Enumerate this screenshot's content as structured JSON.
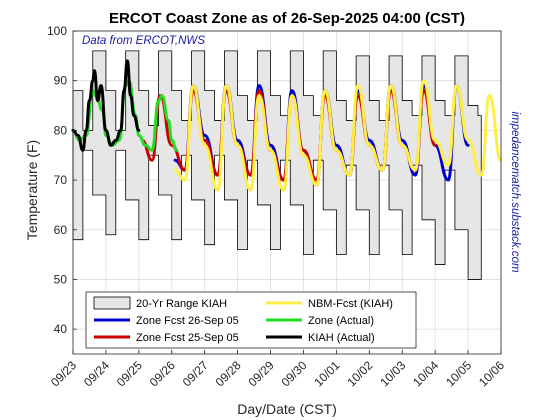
{
  "chart_data": {
    "type": "line",
    "title": "ERCOT Coast Zone as of 26-Sep-2025 04:00 (CST)",
    "xlabel": "Day/Date (CST)",
    "ylabel": "Temperature (F)",
    "x_unit": "day of September 2025 (fractional, CST)",
    "xlim": [
      23,
      36
    ],
    "ylim": [
      35,
      100
    ],
    "x_ticks": [
      {
        "x": 23,
        "label": "09/23"
      },
      {
        "x": 24,
        "label": "09/24"
      },
      {
        "x": 25,
        "label": "09/25"
      },
      {
        "x": 26,
        "label": "09/26"
      },
      {
        "x": 27,
        "label": "09/27"
      },
      {
        "x": 28,
        "label": "09/28"
      },
      {
        "x": 29,
        "label": "09/29"
      },
      {
        "x": 30,
        "label": "09/30"
      },
      {
        "x": 31,
        "label": "10/01"
      },
      {
        "x": 32,
        "label": "10/02"
      },
      {
        "x": 33,
        "label": "10/03"
      },
      {
        "x": 34,
        "label": "10/04"
      },
      {
        "x": 35,
        "label": "10/05"
      },
      {
        "x": 36,
        "label": "10/06"
      }
    ],
    "y_ticks": [
      {
        "y": 40,
        "label": "40"
      },
      {
        "y": 50,
        "label": "50"
      },
      {
        "y": 60,
        "label": "60"
      },
      {
        "y": 70,
        "label": "70"
      },
      {
        "y": 80,
        "label": "80"
      },
      {
        "y": 90,
        "label": "90"
      },
      {
        "y": 100,
        "label": "100"
      }
    ],
    "grid": true,
    "legend_position": "bottom-center",
    "annotations": [
      {
        "text": "Data from ERCOT,NWS",
        "position": "top-left"
      },
      {
        "text": "impedancematch.substack.com",
        "position": "right-side-vertical"
      }
    ],
    "series": [
      {
        "name": "20-Yr Range KIAH",
        "kind": "band",
        "color": "#e6e6e6",
        "x": [
          23.0,
          23.3,
          23.6,
          24.0,
          24.3,
          24.6,
          25.0,
          25.3,
          25.6,
          26.0,
          26.3,
          26.6,
          27.0,
          27.3,
          27.6,
          28.0,
          28.3,
          28.6,
          29.0,
          29.3,
          29.6,
          30.0,
          30.3,
          30.6,
          31.0,
          31.3,
          31.6,
          32.0,
          32.3,
          32.6,
          33.0,
          33.3,
          33.6,
          34.0,
          34.3,
          34.6,
          35.0,
          35.3
        ],
        "lo": [
          66,
          58,
          76,
          67,
          59,
          76,
          66,
          58,
          75,
          67,
          58,
          75,
          66,
          57,
          75,
          66,
          56,
          74,
          65,
          56,
          74,
          65,
          55,
          74,
          64,
          55,
          73,
          64,
          55,
          73,
          64,
          55,
          73,
          62,
          53,
          72,
          60,
          50
        ],
        "hi": [
          88,
          80,
          96,
          88,
          80,
          96,
          88,
          81,
          96,
          88,
          82,
          96,
          88,
          82,
          96,
          87,
          82,
          96,
          87,
          83,
          96,
          87,
          83,
          96,
          86,
          82,
          95,
          86,
          82,
          95,
          86,
          83,
          95,
          86,
          83,
          95,
          85,
          83
        ]
      },
      {
        "name": "Zone Fcst 26-Sep 05",
        "color": "#0000cc",
        "x": [
          26.1,
          26.4,
          26.65,
          27.0,
          27.4,
          27.65,
          28.0,
          28.4,
          28.65,
          29.0,
          29.4,
          29.65,
          30.0,
          30.4,
          30.65,
          31.0,
          31.4,
          31.65,
          32.0,
          32.4,
          32.65,
          33.0,
          33.4,
          33.65,
          34.0,
          34.4,
          34.65,
          35.0
        ],
        "y": [
          74,
          72,
          89,
          79,
          71,
          89,
          78,
          71,
          89,
          77,
          70,
          88,
          76,
          69,
          88,
          77,
          71,
          88,
          78,
          72,
          89,
          78,
          71,
          89,
          77,
          70,
          89,
          77
        ]
      },
      {
        "name": "Zone Fcst 25-Sep 05",
        "color": "#cc0000",
        "x": [
          25.1,
          25.4,
          25.65,
          26.0,
          26.4,
          26.65,
          27.0,
          27.4,
          27.65,
          28.0,
          28.4,
          28.65,
          29.0,
          29.4,
          29.65,
          30.0,
          30.4,
          30.65,
          31.0,
          31.4,
          31.65,
          32.0,
          32.4,
          32.65,
          33.0,
          33.4,
          33.65,
          34.0
        ],
        "y": [
          78,
          74,
          87,
          77,
          72,
          88,
          78,
          71,
          88,
          77,
          71,
          88,
          76,
          70,
          87,
          76,
          70,
          87,
          76,
          71,
          87,
          77,
          72,
          88,
          77,
          72,
          88,
          77
        ]
      },
      {
        "name": "NBM-Fcst (KIAH)",
        "color": "#ffee44",
        "x": [
          26.1,
          26.4,
          26.65,
          27.0,
          27.4,
          27.65,
          28.0,
          28.4,
          28.65,
          29.0,
          29.4,
          29.65,
          30.0,
          30.4,
          30.65,
          31.0,
          31.4,
          31.65,
          32.0,
          32.4,
          32.65,
          33.0,
          33.4,
          33.65,
          34.0,
          34.4,
          34.65,
          35.0,
          35.4,
          35.65,
          36.0
        ],
        "y": [
          72,
          70,
          89,
          77,
          68,
          89,
          77,
          68,
          87,
          76,
          68,
          87,
          75,
          69,
          88,
          76,
          71,
          89,
          77,
          72,
          89,
          77,
          72,
          90,
          78,
          73,
          89,
          78,
          71,
          87,
          74
        ]
      },
      {
        "name": "Zone (Actual)",
        "color": "#22dd22",
        "x": [
          23.0,
          23.2,
          23.4,
          23.6,
          23.7,
          23.9,
          24.0,
          24.2,
          24.4,
          24.6,
          24.7,
          24.9,
          25.0,
          25.2,
          25.4,
          25.6,
          25.7,
          25.9,
          26.0,
          26.15
        ],
        "y": [
          80,
          78,
          79,
          88,
          87,
          84,
          79,
          77,
          78,
          89,
          90,
          83,
          79,
          77,
          76,
          86,
          87,
          82,
          78,
          76
        ]
      },
      {
        "name": "KIAH (Actual)",
        "color": "#000000",
        "x": [
          23.0,
          23.15,
          23.3,
          23.4,
          23.5,
          23.6,
          23.65,
          23.75,
          23.85,
          24.0,
          24.15,
          24.3,
          24.45,
          24.55,
          24.65,
          24.75,
          24.85,
          25.0
        ],
        "y": [
          80,
          79,
          76,
          80,
          86,
          90,
          92,
          86,
          89,
          80,
          77,
          78,
          80,
          88,
          94,
          87,
          83,
          80
        ]
      }
    ]
  }
}
